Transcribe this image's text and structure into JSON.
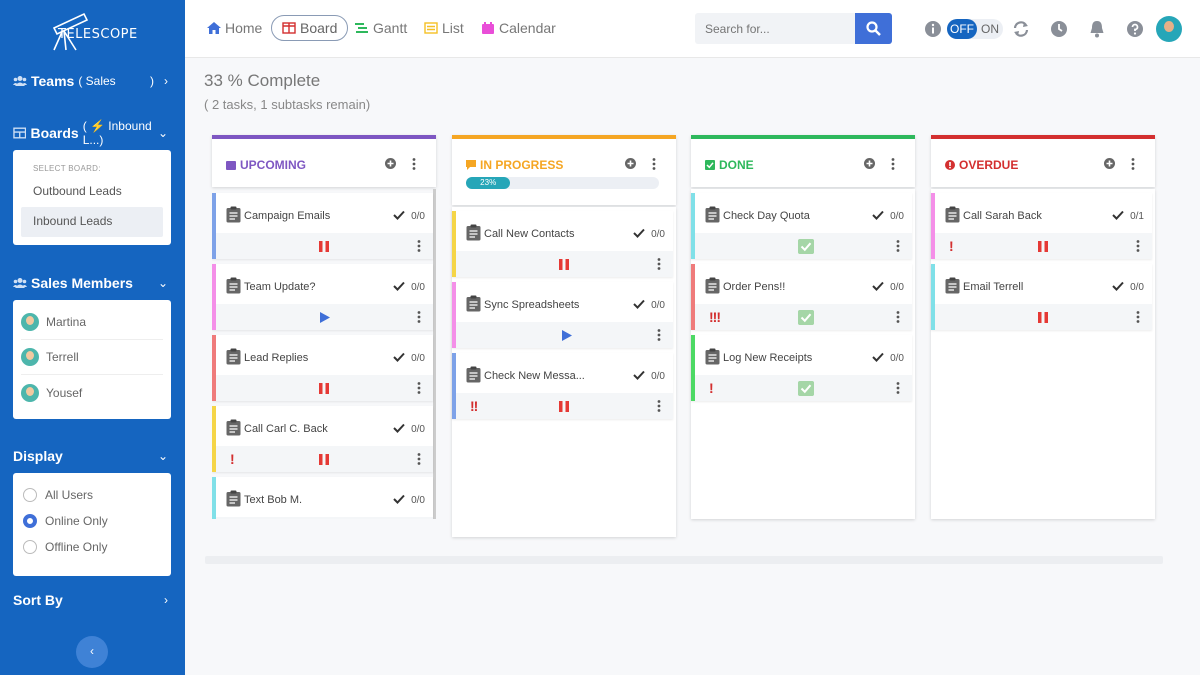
{
  "app": {
    "logo_text": "TELESCOPE"
  },
  "sidebar": {
    "teams": {
      "label": "Teams",
      "value": "( Sales",
      "close": ")"
    },
    "boards": {
      "label": "Boards",
      "value": "( ⚡ Inbound L...)"
    },
    "board_hint": "SELECT BOARD:",
    "board_options": [
      {
        "label": "Outbound Leads"
      },
      {
        "label": "Inbound Leads"
      }
    ],
    "members_label": "Sales Members",
    "members": [
      {
        "name": "Martina"
      },
      {
        "name": "Terrell"
      },
      {
        "name": "Yousef"
      }
    ],
    "display_label": "Display",
    "display_options": [
      {
        "label": "All Users"
      },
      {
        "label": "Online Only"
      },
      {
        "label": "Offline Only"
      }
    ],
    "sort_label": "Sort By"
  },
  "nav": {
    "home": "Home",
    "board": "Board",
    "gantt": "Gantt",
    "list": "List",
    "calendar": "Calendar",
    "search_placeholder": "Search for...",
    "toggle_off": "OFF",
    "toggle_on": "ON"
  },
  "summary": {
    "complete": "33 % Complete",
    "remaining": "( 2 tasks, 1 subtasks remain)"
  },
  "columns": [
    {
      "title": "UPCOMING",
      "color": "#7e57c2",
      "cards": [
        {
          "title": "Campaign Emails",
          "count": "0/0",
          "color": "#7ea2e8"
        },
        {
          "title": "Team Update?",
          "count": "0/0",
          "color": "#f48fe8"
        },
        {
          "title": "Lead Replies",
          "count": "0/0",
          "color": "#ef7b7b"
        },
        {
          "title": "Call Carl C. Back",
          "count": "0/0",
          "color": "#f5d547"
        },
        {
          "title": "Text Bob M.",
          "count": "0/0",
          "color": "#80e0e8"
        }
      ]
    },
    {
      "title": "IN PROGRESS",
      "color": "#f5a623",
      "progress": "23%",
      "cards": [
        {
          "title": "Call New Contacts",
          "count": "0/0",
          "color": "#f5d547"
        },
        {
          "title": "Sync Spreadsheets",
          "count": "0/0",
          "color": "#f48fe8"
        },
        {
          "title": "Check New Messa...",
          "count": "0/0",
          "color": "#7ea2e8"
        }
      ]
    },
    {
      "title": "DONE",
      "color": "#2eb85c",
      "cards": [
        {
          "title": "Check Day Quota",
          "count": "0/0",
          "color": "#80e0e8"
        },
        {
          "title": "Order Pens!!",
          "count": "0/0",
          "color": "#ef7b7b"
        },
        {
          "title": "Log New Receipts",
          "count": "0/0",
          "color": "#4cd964"
        }
      ]
    },
    {
      "title": "OVERDUE",
      "color": "#d32f2f",
      "cards": [
        {
          "title": "Call Sarah Back",
          "count": "0/1",
          "color": "#f48fe8"
        },
        {
          "title": "Email Terrell",
          "count": "0/0",
          "color": "#80e0e8"
        }
      ]
    }
  ],
  "icons": {
    "priority_high": "!",
    "priority_higher": "!!",
    "priority_highest": "!!!"
  }
}
